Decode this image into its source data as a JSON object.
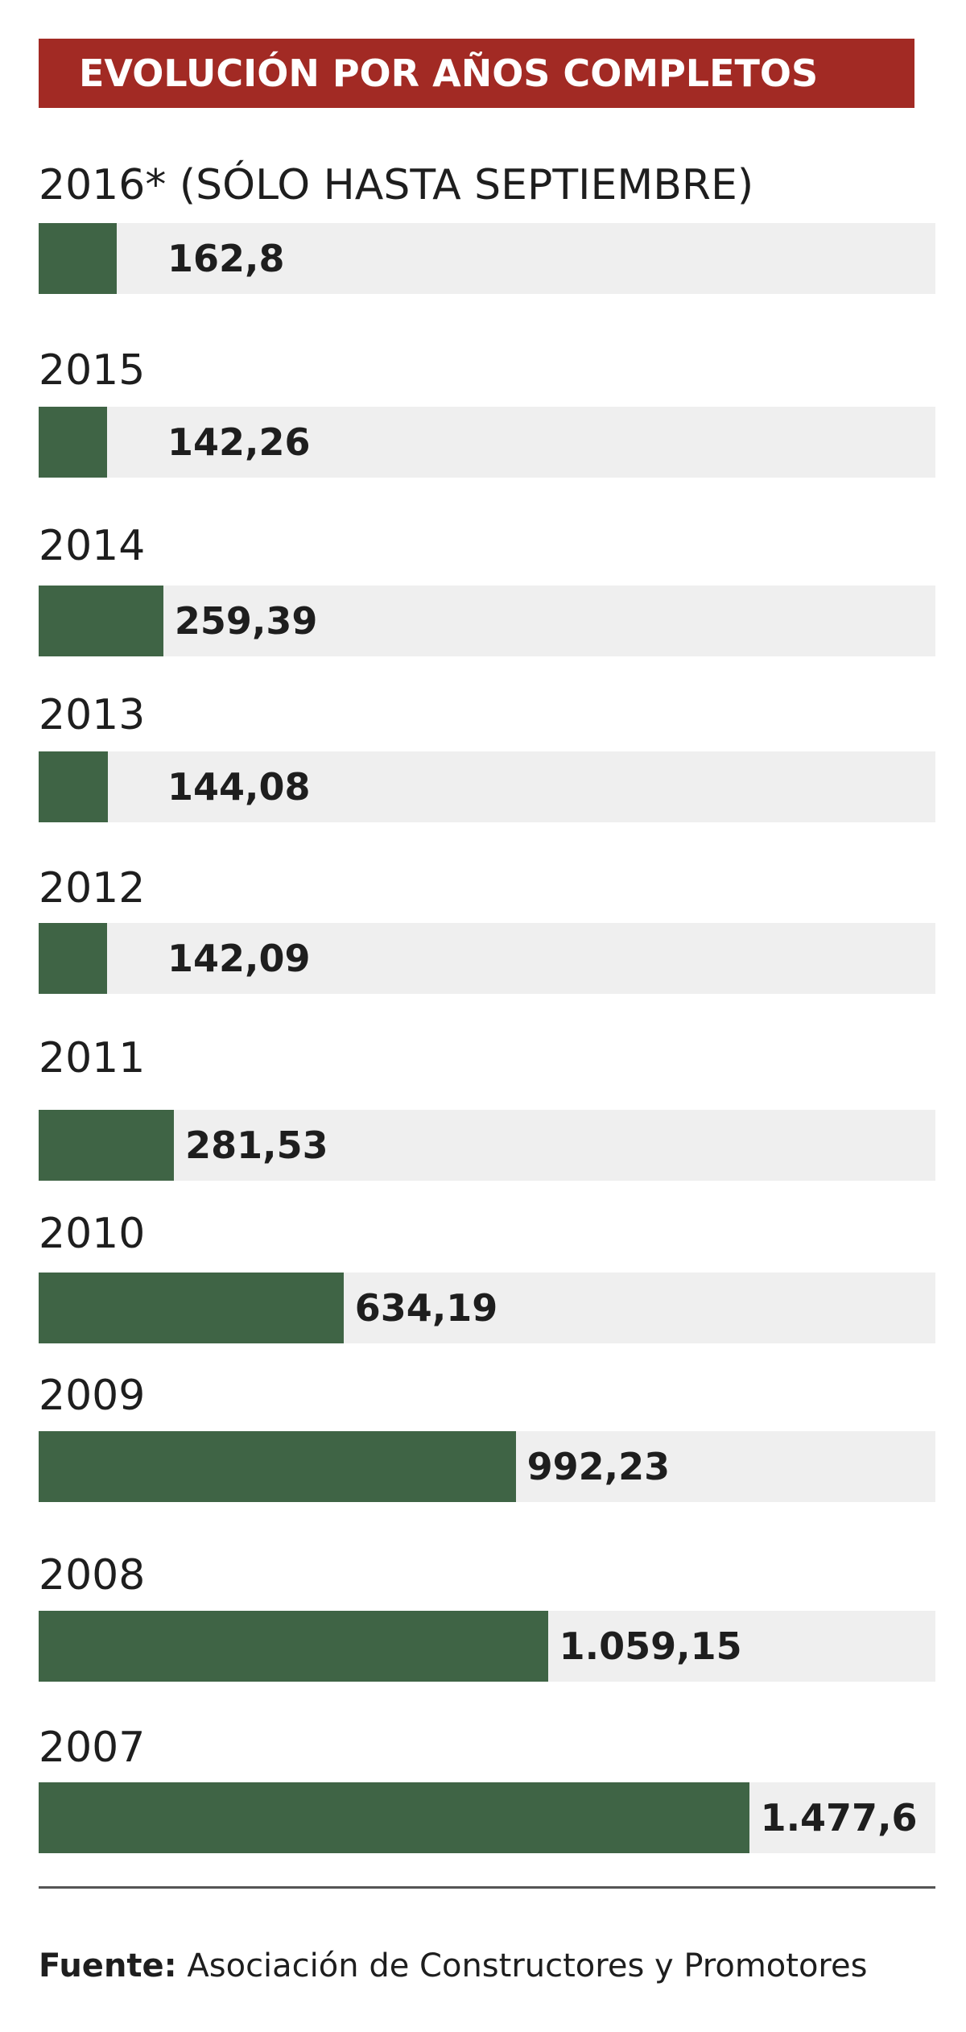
{
  "chart_data": {
    "type": "bar",
    "orientation": "horizontal",
    "title": "EVOLUCIÓN POR AÑOS COMPLETOS",
    "categories": [
      "2016* (SÓLO HASTA SEPTIEMBRE)",
      "2015",
      "2014",
      "2013",
      "2012",
      "2011",
      "2010",
      "2009",
      "2008",
      "2007"
    ],
    "values": [
      162.8,
      142.26,
      259.39,
      144.08,
      142.09,
      281.53,
      634.19,
      992.23,
      1059.15,
      1477.6
    ],
    "value_labels": [
      "162,8",
      "142,26",
      "259,39",
      "144,08",
      "142,09",
      "281,53",
      "634,19",
      "992,23",
      "1.059,15",
      "1.477,6"
    ],
    "xlabel": "",
    "ylabel": "",
    "xlim": [
      0,
      1480
    ],
    "grid": false,
    "colors": {
      "bar": "#3f6445",
      "track": "#efefef",
      "title_bg": "#a22a24"
    }
  },
  "source": {
    "label": "Fuente:",
    "text": " Asociación de Constructores y Promotores"
  }
}
